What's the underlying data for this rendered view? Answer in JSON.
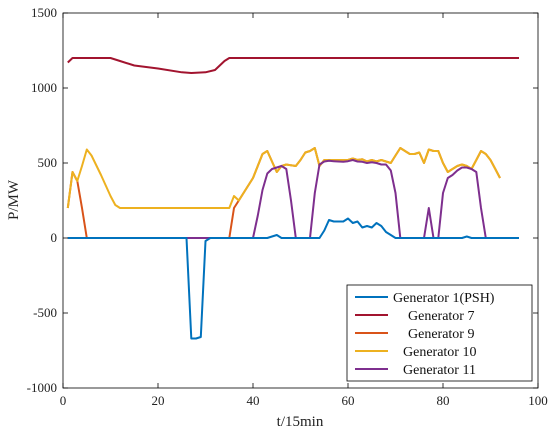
{
  "chart_data": {
    "type": "line",
    "xlabel": "t/15min",
    "ylabel": "P/MW",
    "xlim": [
      0,
      100
    ],
    "ylim": [
      -1000,
      1500
    ],
    "xticks": [
      0,
      20,
      40,
      60,
      80,
      100
    ],
    "yticks": [
      -1000,
      -500,
      0,
      500,
      1000,
      1500
    ],
    "grid": false,
    "legend_position": "bottom-right",
    "series": [
      {
        "name": "Generator 7",
        "color": "#a2142f",
        "points": [
          [
            1,
            1170
          ],
          [
            2,
            1200
          ],
          [
            10,
            1200
          ],
          [
            12,
            1180
          ],
          [
            15,
            1150
          ],
          [
            20,
            1130
          ],
          [
            25,
            1105
          ],
          [
            27,
            1100
          ],
          [
            30,
            1105
          ],
          [
            32,
            1120
          ],
          [
            34,
            1180
          ],
          [
            35,
            1200
          ],
          [
            96,
            1200
          ]
        ]
      },
      {
        "name": "Generator 9",
        "color": "#d95319",
        "points": [
          [
            1,
            200
          ],
          [
            2,
            440
          ],
          [
            3,
            380
          ],
          [
            4,
            200
          ],
          [
            5,
            0
          ],
          [
            35,
            0
          ],
          [
            36,
            200
          ],
          [
            37,
            250
          ],
          [
            40,
            400
          ],
          [
            42,
            560
          ],
          [
            43,
            580
          ],
          [
            44,
            510
          ],
          [
            45,
            440
          ],
          [
            46,
            480
          ],
          [
            47,
            490
          ],
          [
            48,
            485
          ],
          [
            49,
            480
          ],
          [
            50,
            520
          ],
          [
            51,
            570
          ],
          [
            52,
            580
          ],
          [
            53,
            600
          ],
          [
            54,
            480
          ],
          [
            55,
            520
          ],
          [
            60,
            520
          ],
          [
            61,
            530
          ],
          [
            62,
            520
          ],
          [
            63,
            525
          ],
          [
            64,
            510
          ],
          [
            65,
            520
          ],
          [
            66,
            510
          ],
          [
            67,
            520
          ],
          [
            68,
            510
          ],
          [
            69,
            500
          ],
          [
            70,
            550
          ],
          [
            71,
            600
          ],
          [
            72,
            580
          ],
          [
            73,
            560
          ],
          [
            74,
            560
          ],
          [
            75,
            570
          ],
          [
            76,
            500
          ],
          [
            77,
            590
          ],
          [
            78,
            580
          ],
          [
            79,
            580
          ],
          [
            80,
            500
          ],
          [
            81,
            440
          ],
          [
            82,
            460
          ],
          [
            83,
            480
          ],
          [
            84,
            490
          ],
          [
            85,
            480
          ],
          [
            86,
            460
          ],
          [
            87,
            520
          ],
          [
            88,
            580
          ],
          [
            89,
            560
          ],
          [
            90,
            520
          ],
          [
            91,
            460
          ],
          [
            92,
            400
          ]
        ]
      },
      {
        "name": "Generator 10",
        "color": "#edb120",
        "points": [
          [
            1,
            200
          ],
          [
            2,
            440
          ],
          [
            3,
            380
          ],
          [
            4,
            480
          ],
          [
            5,
            590
          ],
          [
            6,
            550
          ],
          [
            8,
            420
          ],
          [
            10,
            280
          ],
          [
            11,
            220
          ],
          [
            12,
            200
          ],
          [
            35,
            200
          ],
          [
            36,
            280
          ],
          [
            37,
            250
          ],
          [
            40,
            400
          ],
          [
            42,
            560
          ],
          [
            43,
            580
          ],
          [
            44,
            510
          ],
          [
            45,
            440
          ],
          [
            46,
            480
          ],
          [
            47,
            490
          ],
          [
            48,
            485
          ],
          [
            49,
            480
          ],
          [
            50,
            520
          ],
          [
            51,
            570
          ],
          [
            52,
            580
          ],
          [
            53,
            600
          ],
          [
            54,
            480
          ],
          [
            55,
            520
          ],
          [
            60,
            520
          ],
          [
            61,
            530
          ],
          [
            62,
            520
          ],
          [
            63,
            525
          ],
          [
            64,
            510
          ],
          [
            65,
            520
          ],
          [
            66,
            510
          ],
          [
            67,
            520
          ],
          [
            68,
            510
          ],
          [
            69,
            500
          ],
          [
            70,
            550
          ],
          [
            71,
            600
          ],
          [
            72,
            580
          ],
          [
            73,
            560
          ],
          [
            74,
            560
          ],
          [
            75,
            570
          ],
          [
            76,
            500
          ],
          [
            77,
            590
          ],
          [
            78,
            580
          ],
          [
            79,
            580
          ],
          [
            80,
            500
          ],
          [
            81,
            440
          ],
          [
            82,
            460
          ],
          [
            83,
            480
          ],
          [
            84,
            490
          ],
          [
            85,
            480
          ],
          [
            86,
            460
          ],
          [
            87,
            520
          ],
          [
            88,
            580
          ],
          [
            89,
            560
          ],
          [
            90,
            520
          ],
          [
            91,
            460
          ],
          [
            92,
            400
          ]
        ]
      },
      {
        "name": "Generator 11",
        "color": "#7e2f8e",
        "points": [
          [
            1,
            0
          ],
          [
            40,
            0
          ],
          [
            41,
            150
          ],
          [
            42,
            320
          ],
          [
            43,
            430
          ],
          [
            44,
            460
          ],
          [
            45,
            470
          ],
          [
            46,
            480
          ],
          [
            47,
            460
          ],
          [
            48,
            250
          ],
          [
            49,
            0
          ],
          [
            52,
            0
          ],
          [
            53,
            300
          ],
          [
            54,
            490
          ],
          [
            55,
            510
          ],
          [
            56,
            515
          ],
          [
            57,
            512
          ],
          [
            58,
            510
          ],
          [
            59,
            508
          ],
          [
            60,
            512
          ],
          [
            61,
            520
          ],
          [
            62,
            510
          ],
          [
            63,
            508
          ],
          [
            64,
            500
          ],
          [
            65,
            505
          ],
          [
            66,
            500
          ],
          [
            67,
            490
          ],
          [
            68,
            490
          ],
          [
            69,
            450
          ],
          [
            70,
            300
          ],
          [
            71,
            0
          ],
          [
            76,
            0
          ],
          [
            77,
            200
          ],
          [
            78,
            0
          ],
          [
            79,
            0
          ],
          [
            80,
            300
          ],
          [
            81,
            400
          ],
          [
            82,
            420
          ],
          [
            83,
            450
          ],
          [
            84,
            470
          ],
          [
            85,
            470
          ],
          [
            86,
            460
          ],
          [
            87,
            440
          ],
          [
            88,
            200
          ],
          [
            89,
            0
          ],
          [
            96,
            0
          ]
        ]
      },
      {
        "name": "Generator 1(PSH)",
        "color": "#0072bd",
        "points": [
          [
            1,
            0
          ],
          [
            26,
            0
          ],
          [
            27,
            -670
          ],
          [
            28,
            -670
          ],
          [
            29,
            -660
          ],
          [
            30,
            -20
          ],
          [
            31,
            0
          ],
          [
            40,
            0
          ],
          [
            41,
            0
          ],
          [
            42,
            0
          ],
          [
            43,
            0
          ],
          [
            44,
            10
          ],
          [
            45,
            20
          ],
          [
            46,
            0
          ],
          [
            47,
            0
          ],
          [
            54,
            0
          ],
          [
            55,
            50
          ],
          [
            56,
            120
          ],
          [
            57,
            110
          ],
          [
            58,
            110
          ],
          [
            59,
            110
          ],
          [
            60,
            130
          ],
          [
            61,
            100
          ],
          [
            62,
            110
          ],
          [
            63,
            70
          ],
          [
            64,
            80
          ],
          [
            65,
            70
          ],
          [
            66,
            100
          ],
          [
            67,
            80
          ],
          [
            68,
            40
          ],
          [
            69,
            20
          ],
          [
            70,
            0
          ],
          [
            84,
            0
          ],
          [
            85,
            10
          ],
          [
            86,
            0
          ],
          [
            96,
            0
          ]
        ]
      }
    ],
    "legend": [
      {
        "label": "Generator 1(PSH)",
        "color": "#0072bd"
      },
      {
        "label": "Generator 7",
        "color": "#a2142f"
      },
      {
        "label": "Generator 9",
        "color": "#d95319"
      },
      {
        "label": "Generator 10",
        "color": "#edb120"
      },
      {
        "label": "Generator 11",
        "color": "#7e2f8e"
      }
    ]
  }
}
